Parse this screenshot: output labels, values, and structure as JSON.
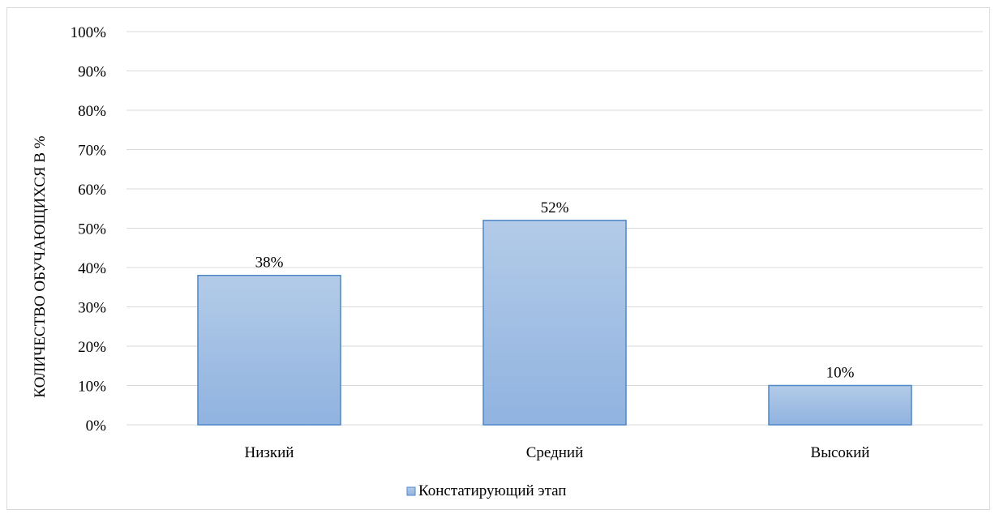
{
  "chart_data": {
    "type": "bar",
    "categories": [
      "Низкий",
      "Средний",
      "Высокий"
    ],
    "series": [
      {
        "name": "Констатирующий этап",
        "values": [
          38,
          52,
          10
        ],
        "value_labels": [
          "38%",
          "52%",
          "10%"
        ]
      }
    ],
    "title": "",
    "xlabel": "",
    "ylabel": "КОЛИЧЕСТВО ОБУЧАЮЩИХСЯ В %",
    "ylim": [
      0,
      100
    ],
    "yticks": [
      0,
      10,
      20,
      30,
      40,
      50,
      60,
      70,
      80,
      90,
      100
    ],
    "ytick_labels": [
      "0%",
      "10%",
      "20%",
      "30%",
      "40%",
      "50%",
      "60%",
      "70%",
      "80%",
      "90%",
      "100%"
    ],
    "grid": true,
    "legend_position": "bottom",
    "colors": {
      "bar_fill_top": "#b3cbe8",
      "bar_fill_bottom": "#90b3e0",
      "bar_stroke": "#4f86c6",
      "grid": "#d9d9d9"
    }
  }
}
